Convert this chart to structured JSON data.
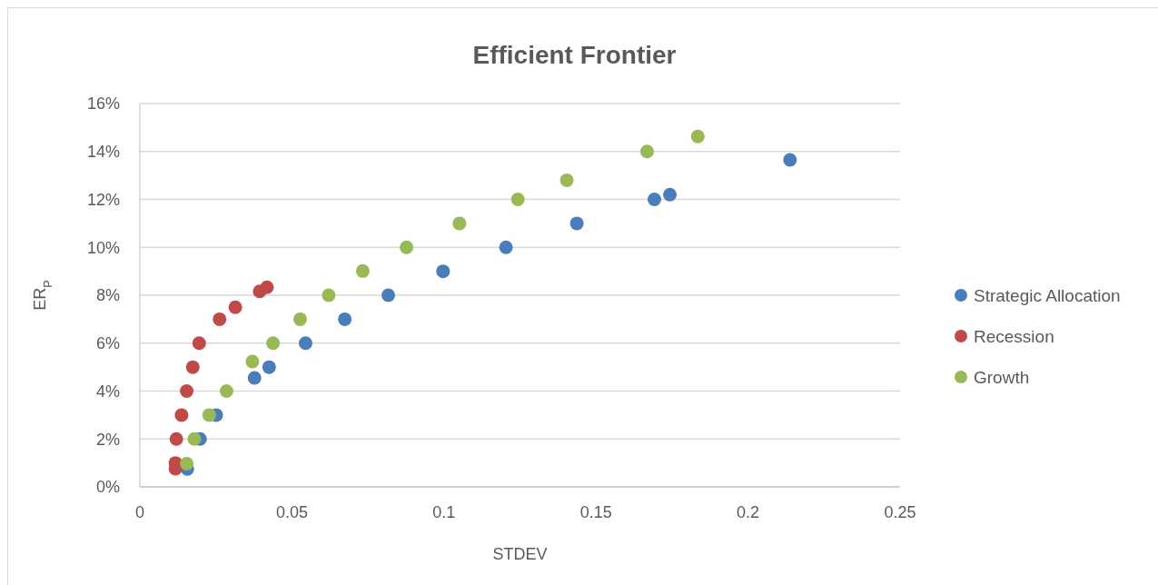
{
  "chart_data": {
    "type": "scatter",
    "title": "Efficient Frontier",
    "xlabel": "STDEV",
    "ylabel": "ER$_{P}$",
    "xlim": [
      0,
      0.25
    ],
    "xticks": [
      0,
      0.05,
      0.1,
      0.15,
      0.2,
      0.25
    ],
    "ylim": [
      0,
      16
    ],
    "yticks": [
      {
        "value": 0,
        "label": "0%"
      },
      {
        "value": 2,
        "label": "2%"
      },
      {
        "value": 4,
        "label": "4%"
      },
      {
        "value": 6,
        "label": "6%"
      },
      {
        "value": 8,
        "label": "8%"
      },
      {
        "value": 10,
        "label": "10%"
      },
      {
        "value": 12,
        "label": "12%"
      },
      {
        "value": 14,
        "label": "14%"
      },
      {
        "value": 16,
        "label": "16%"
      }
    ],
    "grid": "y",
    "legend": "right",
    "marker": "circle",
    "series": [
      {
        "name": "Strategic Allocation",
        "color": "#4a7ebb",
        "x": [
          0.0156,
          0.0198,
          0.0251,
          0.0377,
          0.0425,
          0.0545,
          0.0674,
          0.0817,
          0.0997,
          0.1204,
          0.1437,
          0.1692,
          0.1743,
          0.2138
        ],
        "values": [
          0.75,
          2,
          3,
          4.55,
          5,
          6,
          7,
          8,
          9,
          10,
          11,
          12,
          12.2,
          13.65
        ]
      },
      {
        "name": "Recession",
        "color": "#be4b48",
        "x": [
          0.0117,
          0.0117,
          0.012,
          0.0137,
          0.0154,
          0.0174,
          0.0195,
          0.0262,
          0.0314,
          0.0394,
          0.0418
        ],
        "values": [
          0.76,
          1,
          2,
          3,
          4,
          5,
          6,
          7,
          7.5,
          8.16,
          8.33
        ]
      },
      {
        "name": "Growth",
        "color": "#98b954",
        "x": [
          0.0154,
          0.0179,
          0.0228,
          0.0285,
          0.037,
          0.0438,
          0.0527,
          0.0621,
          0.0733,
          0.0877,
          0.1051,
          0.1243,
          0.1404,
          0.1668,
          0.1835
        ],
        "values": [
          0.97,
          2,
          3,
          4,
          5.23,
          6,
          7,
          8,
          9.01,
          10,
          11,
          12,
          12.8,
          14,
          14.63
        ]
      }
    ]
  }
}
